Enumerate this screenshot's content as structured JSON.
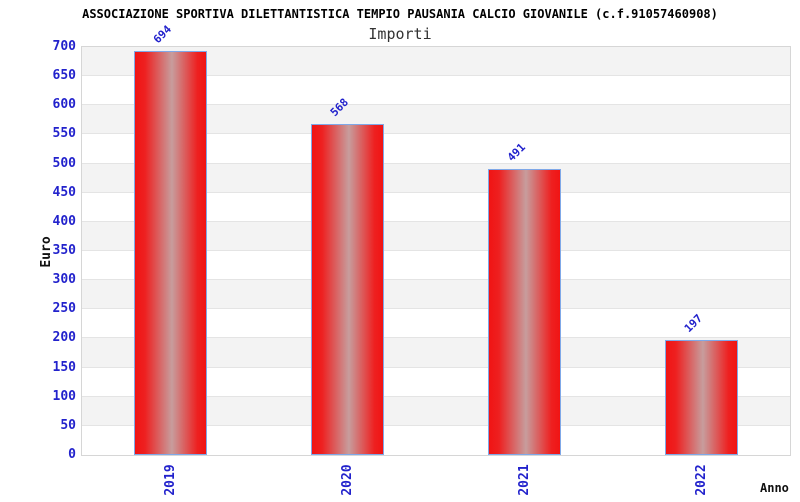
{
  "chart_data": {
    "type": "bar",
    "title": "ASSOCIAZIONE SPORTIVA DILETTANTISTICA TEMPIO PAUSANIA CALCIO GIOVANILE (c.f.91057460908)",
    "subtitle": "Importi",
    "categories": [
      "2019",
      "2020",
      "2021",
      "2022"
    ],
    "values": [
      694,
      568,
      491,
      197
    ],
    "xlabel": "Anno",
    "ylabel": "Euro",
    "ylim": [
      0,
      700
    ],
    "ytick_step": 50,
    "ytick_labels": [
      "0",
      "50",
      "100",
      "150",
      "200",
      "250",
      "300",
      "350",
      "400",
      "450",
      "500",
      "550",
      "600",
      "650",
      "700"
    ],
    "grid": true,
    "legend_position": "none",
    "colors": {
      "bar_edge_red": "#f01414",
      "bar_center": "#c79d9d",
      "bar_border": "#7fa8e8",
      "tick_label_blue": "#2222cc",
      "value_label_blue": "#2222cc",
      "band_gray": "#f3f3f3",
      "band_white": "#ffffff",
      "gridline": "#e4e4e4",
      "plot_border": "#d6d6d6",
      "title_color": "#000000",
      "subtitle_color": "#333333",
      "axis_title_color": "#111111"
    }
  }
}
